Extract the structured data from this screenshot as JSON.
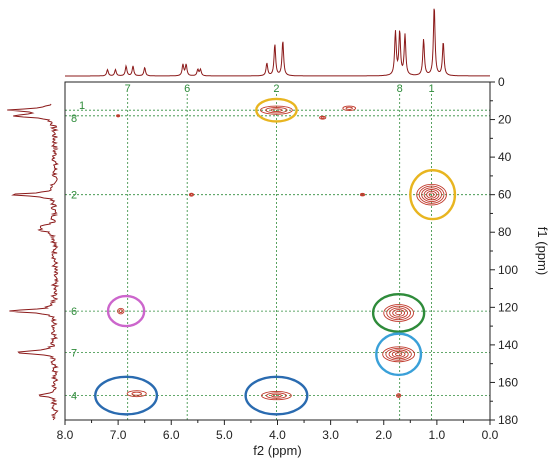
{
  "chart_data": {
    "type": "2D-NMR-contour",
    "xlabel": "f2 (ppm)",
    "ylabel": "f1 (ppm)",
    "xlim": [
      8.0,
      0.0
    ],
    "ylim": [
      0,
      180
    ],
    "x_ticks": [
      "8.0",
      "7.0",
      "6.0",
      "5.0",
      "4.0",
      "3.0",
      "2.0",
      "1.0",
      "0.0"
    ],
    "y_ticks": [
      "0",
      "20",
      "40",
      "60",
      "80",
      "100",
      "120",
      "140",
      "160",
      "180"
    ],
    "colors": {
      "trace": "#8b1a1a",
      "contour": "#c0392b",
      "guide": "#2e8b3a",
      "frame": "#222222",
      "yellow": "#e8b520",
      "blue": "#2a6bb0",
      "green": "#2e8b3a",
      "light_blue": "#3aa0d8",
      "pink": "#cc66cc"
    },
    "f2_labels": [
      {
        "text": "7",
        "x": 6.82
      },
      {
        "text": "6",
        "x": 5.7
      },
      {
        "text": "2",
        "x": 4.02
      },
      {
        "text": "8",
        "x": 1.7
      },
      {
        "text": "1",
        "x": 1.1
      }
    ],
    "f1_labels": [
      {
        "text": "1",
        "y": 15
      },
      {
        "text": "8",
        "y": 18
      },
      {
        "text": "2",
        "y": 60
      },
      {
        "text": "6",
        "y": 122
      },
      {
        "text": "7",
        "y": 144
      },
      {
        "text": "4",
        "y": 167
      }
    ],
    "cross_peaks": [
      {
        "x": 4.02,
        "y": 15,
        "rx": 0.3,
        "ry": 2.2
      },
      {
        "x": 2.65,
        "y": 14,
        "rx": 0.12,
        "ry": 1.2
      },
      {
        "x": 3.15,
        "y": 19,
        "rx": 0.06,
        "ry": 0.8
      },
      {
        "x": 7.0,
        "y": 18,
        "rx": 0.03,
        "ry": 0.6
      },
      {
        "x": 1.1,
        "y": 60,
        "rx": 0.28,
        "ry": 5.5
      },
      {
        "x": 5.62,
        "y": 60,
        "rx": 0.04,
        "ry": 0.8
      },
      {
        "x": 2.4,
        "y": 60,
        "rx": 0.04,
        "ry": 0.7
      },
      {
        "x": 1.72,
        "y": 123,
        "rx": 0.28,
        "ry": 4.5
      },
      {
        "x": 1.72,
        "y": 145,
        "rx": 0.3,
        "ry": 4.0
      },
      {
        "x": 6.95,
        "y": 122,
        "rx": 0.06,
        "ry": 1.5
      },
      {
        "x": 6.65,
        "y": 166,
        "rx": 0.18,
        "ry": 1.6
      },
      {
        "x": 4.02,
        "y": 167,
        "rx": 0.28,
        "ry": 2.2
      },
      {
        "x": 1.72,
        "y": 167,
        "rx": 0.04,
        "ry": 1.0
      }
    ],
    "highlights": [
      {
        "x": 4.02,
        "y": 15,
        "rx": 0.38,
        "ry": 6,
        "color": "yellow"
      },
      {
        "x": 1.08,
        "y": 60,
        "rx": 0.42,
        "ry": 13,
        "color": "yellow"
      },
      {
        "x": 6.85,
        "y": 122,
        "rx": 0.34,
        "ry": 8,
        "color": "pink"
      },
      {
        "x": 1.72,
        "y": 123,
        "rx": 0.48,
        "ry": 10,
        "color": "green"
      },
      {
        "x": 1.72,
        "y": 145,
        "rx": 0.42,
        "ry": 11,
        "color": "light_blue"
      },
      {
        "x": 6.85,
        "y": 167,
        "rx": 0.58,
        "ry": 10,
        "color": "blue"
      },
      {
        "x": 4.02,
        "y": 167,
        "rx": 0.58,
        "ry": 10,
        "color": "blue"
      }
    ],
    "f2_projection_peaks": [
      {
        "x": 7.2,
        "h": 0.09
      },
      {
        "x": 7.05,
        "h": 0.09
      },
      {
        "x": 6.85,
        "h": 0.14
      },
      {
        "x": 6.72,
        "h": 0.14
      },
      {
        "x": 6.5,
        "h": 0.12
      },
      {
        "x": 5.78,
        "h": 0.16
      },
      {
        "x": 5.72,
        "h": 0.16
      },
      {
        "x": 5.5,
        "h": 0.09
      },
      {
        "x": 5.45,
        "h": 0.09
      },
      {
        "x": 4.2,
        "h": 0.18
      },
      {
        "x": 4.05,
        "h": 0.45
      },
      {
        "x": 3.9,
        "h": 0.5
      },
      {
        "x": 1.78,
        "h": 0.62
      },
      {
        "x": 1.7,
        "h": 0.62
      },
      {
        "x": 1.6,
        "h": 0.58
      },
      {
        "x": 1.25,
        "h": 0.52
      },
      {
        "x": 1.05,
        "h": 1.0
      },
      {
        "x": 0.88,
        "h": 0.48
      }
    ],
    "f1_projection_peaks": [
      {
        "y": 15,
        "h": 0.85
      },
      {
        "y": 18,
        "h": 0.8
      },
      {
        "y": 60,
        "h": 0.85
      },
      {
        "y": 77,
        "h": 0.25
      },
      {
        "y": 79,
        "h": 0.25
      },
      {
        "y": 122,
        "h": 0.9
      },
      {
        "y": 144,
        "h": 0.8
      },
      {
        "y": 167,
        "h": 0.3
      }
    ]
  }
}
